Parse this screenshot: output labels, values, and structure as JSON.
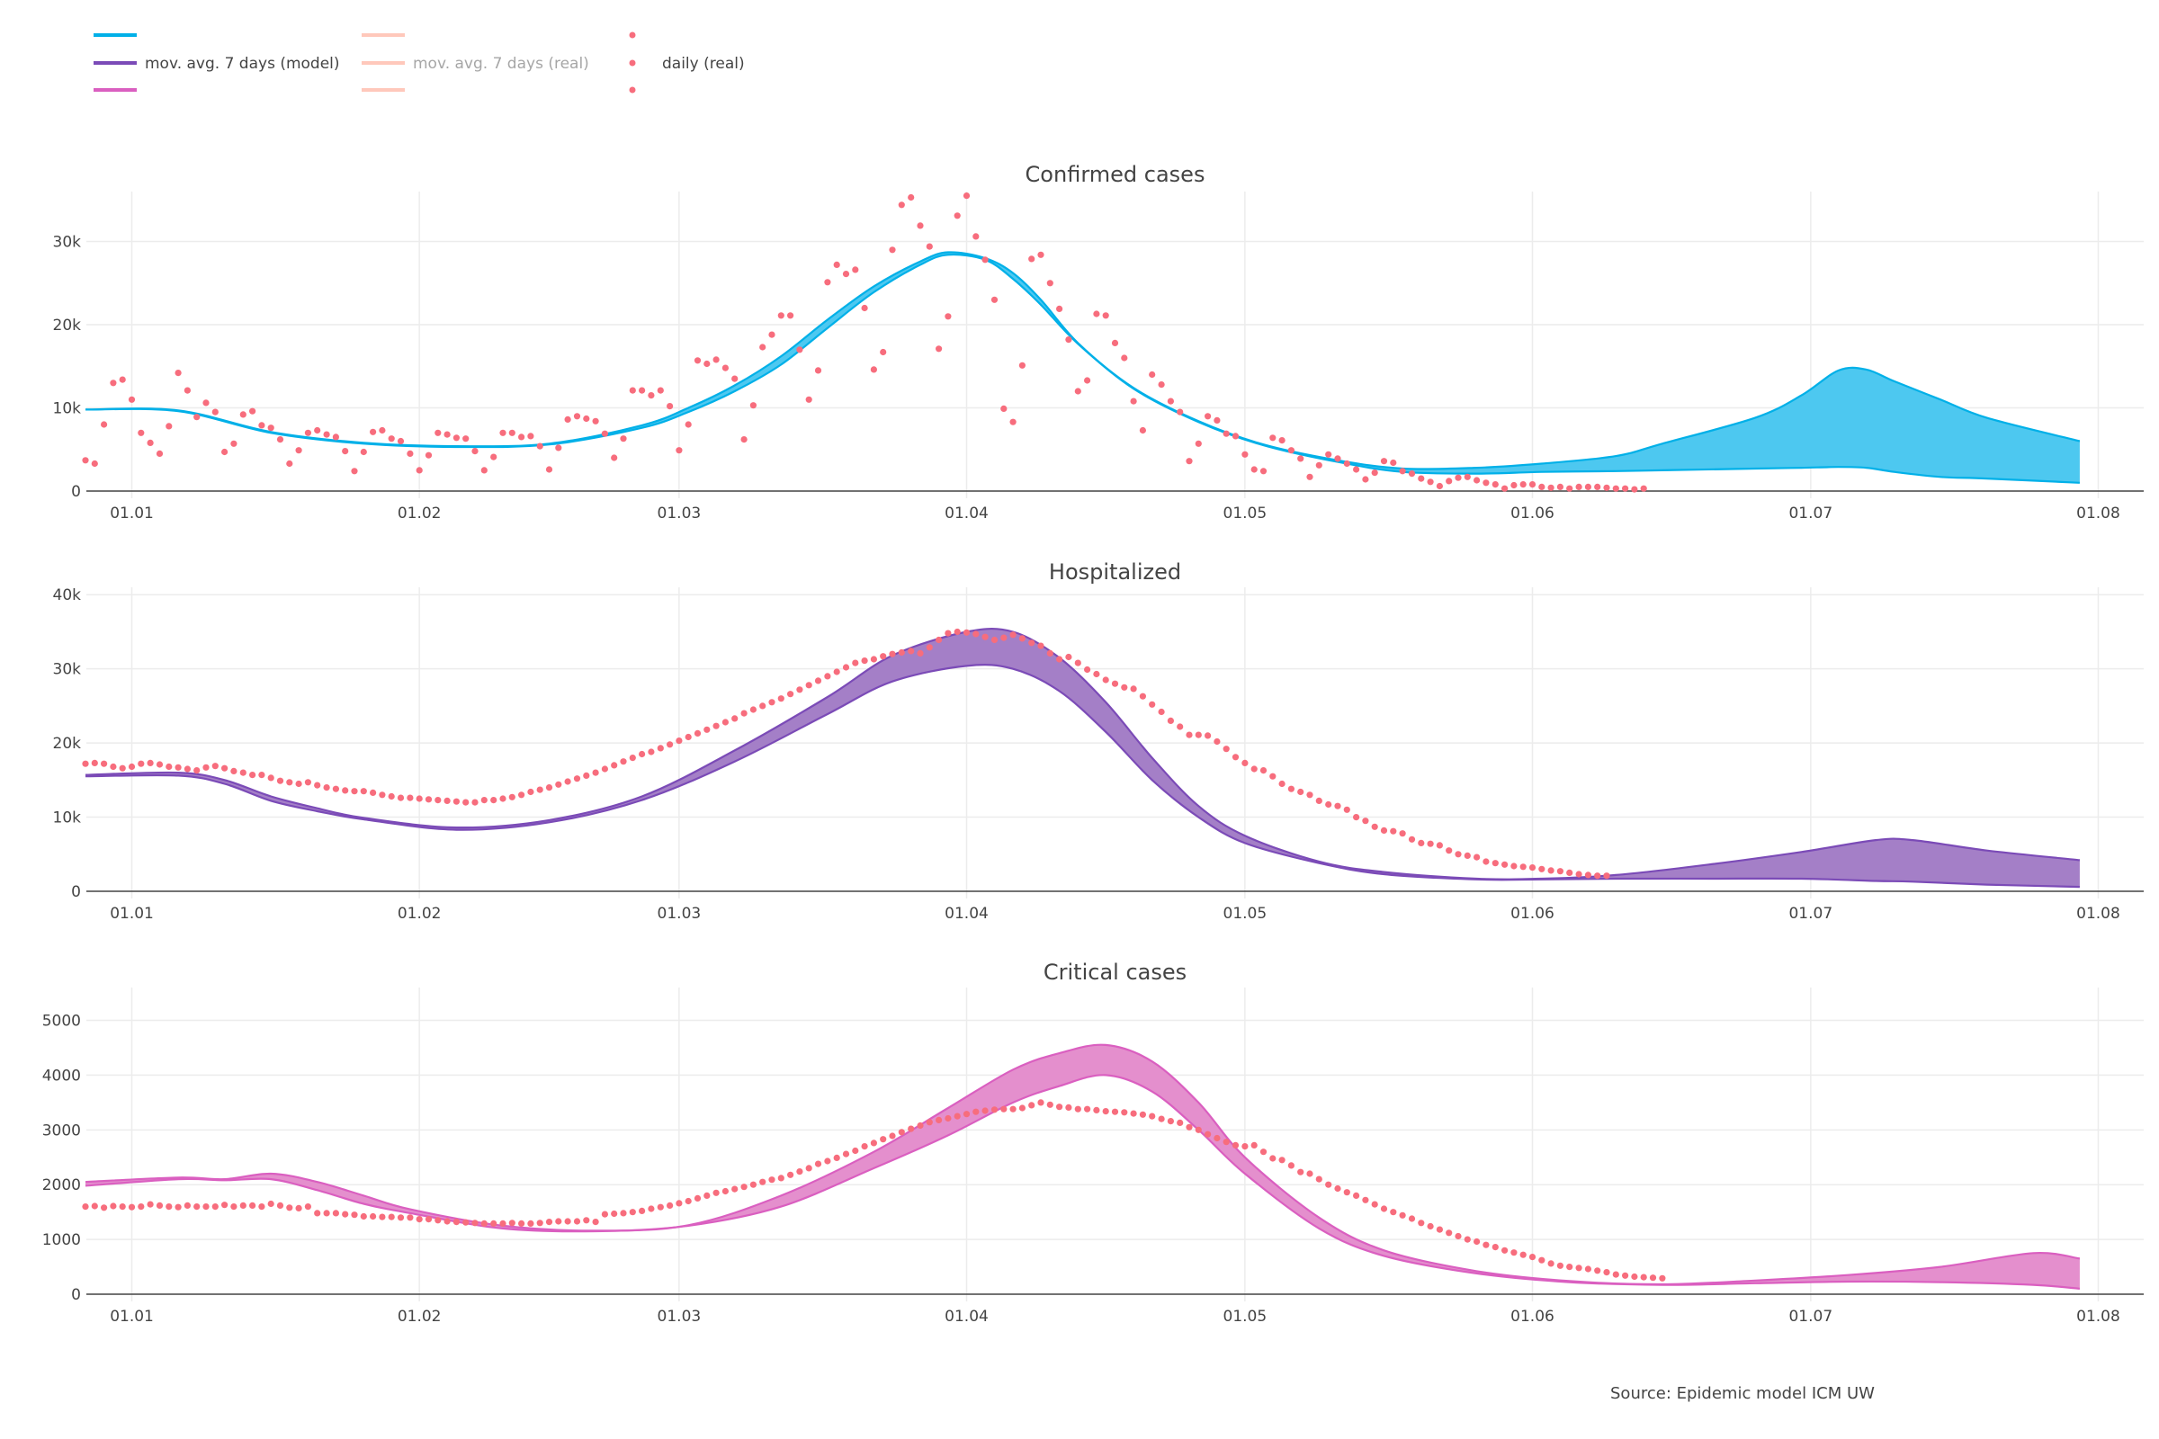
{
  "legend": {
    "items": [
      {
        "label": "mov. avg. 7 days (model)",
        "colors": [
          "#00b0e8",
          "#7b4bb7",
          "#da5fc0"
        ],
        "kind": "line",
        "muted": false
      },
      {
        "label": "mov. avg. 7 days (real)",
        "colors": [
          "#ffc8bb",
          "#ffc8bb",
          "#ffc8bb"
        ],
        "kind": "line",
        "muted": true
      },
      {
        "label": "daily (real)",
        "colors": [
          "#f76d7d",
          "#f76d7d",
          "#f76d7d"
        ],
        "kind": "dot",
        "muted": false
      }
    ]
  },
  "source": "Source: Epidemic model ICM UW",
  "chart_data": [
    {
      "type": "area",
      "title": "Confirmed cases",
      "color": "#00b0e8",
      "fill": "#4dc8f0",
      "x_start_date": "01.01",
      "x_unit": "days since 01.01",
      "xlim": [
        -4.9,
        216.9
      ],
      "xticks": [
        {
          "day": 0,
          "label": "01.01"
        },
        {
          "day": 31,
          "label": "01.02"
        },
        {
          "day": 59,
          "label": "01.03"
        },
        {
          "day": 90,
          "label": "01.04"
        },
        {
          "day": 120,
          "label": "01.05"
        },
        {
          "day": 151,
          "label": "01.06"
        },
        {
          "day": 181,
          "label": "01.07"
        },
        {
          "day": 212,
          "label": "01.08"
        }
      ],
      "ylim": [
        0,
        36000
      ],
      "yticks": [
        {
          "value": 0,
          "label": "0"
        },
        {
          "value": 10000,
          "label": "10k"
        },
        {
          "value": 20000,
          "label": "20k"
        },
        {
          "value": 30000,
          "label": "30k"
        }
      ],
      "model_band": {
        "name": "mov. avg. 7 days (model)",
        "day": [
          -5,
          5,
          15,
          25,
          35,
          45,
          55,
          60,
          65,
          70,
          75,
          80,
          85,
          88,
          92,
          95,
          98,
          102,
          108,
          115,
          122,
          130,
          137,
          145,
          152,
          160,
          165,
          175,
          180,
          184,
          187,
          190,
          195,
          200,
          210
        ],
        "lower": [
          9800,
          9600,
          7000,
          5700,
          5300,
          5600,
          7600,
          9500,
          12000,
          15200,
          19600,
          23900,
          27200,
          28400,
          27800,
          25500,
          22400,
          17700,
          12300,
          8300,
          5500,
          3500,
          2300,
          2100,
          2300,
          2400,
          2500,
          2700,
          2800,
          2900,
          2800,
          2300,
          1700,
          1500,
          1000
        ],
        "upper": [
          9800,
          9700,
          7100,
          5800,
          5400,
          5700,
          7900,
          10000,
          12700,
          16200,
          20600,
          24600,
          27600,
          28700,
          28000,
          26200,
          23000,
          17800,
          12400,
          8400,
          5600,
          3700,
          2700,
          2800,
          3300,
          4200,
          5700,
          8800,
          11500,
          14500,
          14600,
          13200,
          11000,
          8800,
          6000
        ]
      },
      "daily_real": {
        "name": "daily (real)",
        "start_day": -5,
        "values": [
          3700,
          3300,
          8000,
          13000,
          13400,
          11000,
          7000,
          5800,
          4500,
          7800,
          14200,
          12100,
          8900,
          10600,
          9500,
          4700,
          5700,
          9200,
          9600,
          7900,
          7600,
          6200,
          3300,
          4900,
          7000,
          7300,
          6800,
          6500,
          4800,
          2400,
          4700,
          7100,
          7300,
          6300,
          6000,
          4500,
          2500,
          4300,
          7000,
          6800,
          6400,
          6300,
          4800,
          2500,
          4100,
          7000,
          7000,
          6500,
          6600,
          5400,
          2600,
          5200,
          8600,
          9000,
          8700,
          8400,
          6900,
          4000,
          6300,
          12100,
          12100,
          11500,
          12100,
          10200,
          4900,
          8000,
          15700,
          15300,
          15800,
          14800,
          13500,
          6200,
          10300,
          17300,
          18800,
          21100,
          21100,
          17000,
          11000,
          14500,
          25100,
          27200,
          26100,
          26600,
          22000,
          14600,
          16700,
          29000,
          34400,
          35300,
          31900,
          29400,
          17100,
          21000,
          33100,
          35500,
          30600,
          27800,
          23000,
          9900,
          8300,
          15100,
          27900,
          28400,
          25000,
          21900,
          18200,
          12000,
          13300,
          21300,
          21100,
          17800,
          16000,
          10800,
          7300,
          14000,
          12800,
          10800,
          9500,
          3600,
          5700,
          9000,
          8500,
          6900,
          6600,
          4400,
          2600,
          2400,
          6400,
          6100,
          4900,
          3900,
          1700,
          3100,
          4400,
          3900,
          3300,
          2600,
          1400,
          2200,
          3600,
          3400,
          2400,
          2100,
          1500,
          1100,
          600,
          1200,
          1600,
          1700,
          1300,
          1000,
          800,
          300,
          700,
          800,
          800,
          500,
          400,
          500,
          300,
          500,
          500,
          500,
          400,
          300,
          300,
          200,
          300
        ]
      }
    },
    {
      "type": "area",
      "title": "Hospitalized",
      "color": "#7b4bb7",
      "fill": "#a47fc7",
      "x_start_date": "01.01",
      "x_unit": "days since 01.01",
      "xlim": [
        -4.9,
        216.9
      ],
      "xticks": [
        {
          "day": 0,
          "label": "01.01"
        },
        {
          "day": 31,
          "label": "01.02"
        },
        {
          "day": 59,
          "label": "01.03"
        },
        {
          "day": 90,
          "label": "01.04"
        },
        {
          "day": 120,
          "label": "01.05"
        },
        {
          "day": 151,
          "label": "01.06"
        },
        {
          "day": 181,
          "label": "01.07"
        },
        {
          "day": 212,
          "label": "01.08"
        }
      ],
      "ylim": [
        0,
        41000
      ],
      "yticks": [
        {
          "value": 0,
          "label": "0"
        },
        {
          "value": 10000,
          "label": "10k"
        },
        {
          "value": 20000,
          "label": "20k"
        },
        {
          "value": 30000,
          "label": "30k"
        },
        {
          "value": 40000,
          "label": "40k"
        }
      ],
      "model_band": {
        "name": "mov. avg. 7 days (model)",
        "day": [
          -5,
          5,
          10,
          15,
          20,
          25,
          35,
          45,
          55,
          65,
          75,
          82,
          90,
          95,
          100,
          105,
          110,
          115,
          120,
          128,
          135,
          145,
          152,
          160,
          170,
          180,
          188,
          192,
          200,
          210
        ],
        "lower": [
          15500,
          15600,
          14500,
          12200,
          10800,
          9700,
          8300,
          9300,
          12300,
          17500,
          23900,
          28300,
          30400,
          30000,
          27000,
          21500,
          15000,
          10000,
          6500,
          3800,
          2300,
          1600,
          1600,
          1700,
          1700,
          1700,
          1400,
          1300,
          900,
          600
        ],
        "upper": [
          15700,
          16000,
          15000,
          12800,
          11200,
          9900,
          8600,
          9600,
          12800,
          19000,
          26200,
          31800,
          35000,
          35000,
          31500,
          25500,
          18000,
          11500,
          7500,
          4000,
          2600,
          1700,
          1700,
          2200,
          3600,
          5300,
          6900,
          6900,
          5500,
          4200
        ]
      },
      "daily_real": {
        "name": "daily (real)",
        "start_day": -5,
        "values": [
          17200,
          17300,
          17200,
          16800,
          16600,
          16800,
          17200,
          17300,
          17100,
          16800,
          16700,
          16500,
          16300,
          16700,
          16900,
          16600,
          16200,
          16000,
          15700,
          15700,
          15300,
          14900,
          14700,
          14500,
          14700,
          14300,
          14000,
          13800,
          13600,
          13500,
          13500,
          13300,
          13000,
          12800,
          12600,
          12600,
          12500,
          12400,
          12300,
          12200,
          12100,
          12000,
          12000,
          12300,
          12300,
          12500,
          12700,
          13000,
          13400,
          13700,
          14000,
          14400,
          14800,
          15200,
          15600,
          16000,
          16500,
          17000,
          17500,
          18000,
          18500,
          18800,
          19300,
          19800,
          20300,
          20800,
          21300,
          21800,
          22300,
          22800,
          23300,
          24000,
          24500,
          25000,
          25500,
          26000,
          26600,
          27200,
          27800,
          28400,
          29000,
          29600,
          30200,
          30800,
          31100,
          31300,
          31700,
          32000,
          32200,
          32400,
          32100,
          32900,
          33900,
          34800,
          35000,
          34900,
          34700,
          34300,
          33900,
          34200,
          34600,
          34100,
          33500,
          33100,
          32100,
          31300,
          31600,
          30800,
          29900,
          29300,
          28500,
          28000,
          27500,
          27300,
          26300,
          25200,
          24200,
          23000,
          22200,
          21100,
          21100,
          21000,
          20200,
          19200,
          18100,
          17300,
          16500,
          16300,
          15500,
          14500,
          13800,
          13400,
          13000,
          12200,
          11700,
          11500,
          11000,
          10000,
          9500,
          8700,
          8200,
          8100,
          7800,
          7000,
          6500,
          6400,
          6200,
          5500,
          5000,
          4800,
          4600,
          4000,
          3800,
          3600,
          3400,
          3300,
          3200,
          3000,
          2800,
          2700,
          2500,
          2300,
          2200,
          2100,
          2100
        ]
      }
    },
    {
      "type": "area",
      "title": "Critical cases",
      "color": "#da5fc0",
      "fill": "#e48fcd",
      "x_start_date": "01.01",
      "x_unit": "days since 01.01",
      "xlim": [
        -4.9,
        216.9
      ],
      "xticks": [
        {
          "day": 0,
          "label": "01.01"
        },
        {
          "day": 31,
          "label": "01.02"
        },
        {
          "day": 59,
          "label": "01.03"
        },
        {
          "day": 90,
          "label": "01.04"
        },
        {
          "day": 120,
          "label": "01.05"
        },
        {
          "day": 151,
          "label": "01.06"
        },
        {
          "day": 181,
          "label": "01.07"
        },
        {
          "day": 212,
          "label": "01.08"
        }
      ],
      "ylim": [
        0,
        5600
      ],
      "yticks": [
        {
          "value": 0,
          "label": "0"
        },
        {
          "value": 1000,
          "label": "1000"
        },
        {
          "value": 2000,
          "label": "2000"
        },
        {
          "value": 3000,
          "label": "3000"
        },
        {
          "value": 4000,
          "label": "4000"
        },
        {
          "value": 5000,
          "label": "5000"
        }
      ],
      "model_band": {
        "name": "mov. avg. 7 days (model)",
        "day": [
          -5,
          5,
          10,
          15,
          20,
          25,
          30,
          40,
          50,
          60,
          70,
          80,
          88,
          95,
          100,
          105,
          110,
          115,
          120,
          128,
          135,
          145,
          155,
          165,
          175,
          185,
          195,
          205,
          210
        ],
        "lower": [
          1980,
          2100,
          2080,
          2100,
          1900,
          1650,
          1480,
          1200,
          1150,
          1250,
          1600,
          2300,
          2900,
          3500,
          3800,
          4000,
          3700,
          3000,
          2200,
          1200,
          700,
          380,
          220,
          170,
          200,
          230,
          220,
          170,
          100
        ],
        "upper": [
          2050,
          2130,
          2100,
          2200,
          2050,
          1800,
          1550,
          1250,
          1160,
          1260,
          1800,
          2600,
          3400,
          4100,
          4400,
          4550,
          4250,
          3500,
          2500,
          1400,
          800,
          420,
          240,
          180,
          250,
          350,
          500,
          750,
          650
        ]
      },
      "daily_real": {
        "name": "daily (real)",
        "start_day": -5,
        "values": [
          1600,
          1610,
          1580,
          1610,
          1600,
          1590,
          1600,
          1640,
          1620,
          1600,
          1590,
          1620,
          1600,
          1600,
          1600,
          1630,
          1600,
          1620,
          1620,
          1600,
          1650,
          1620,
          1580,
          1570,
          1600,
          1480,
          1480,
          1480,
          1460,
          1450,
          1420,
          1420,
          1410,
          1410,
          1400,
          1400,
          1370,
          1370,
          1350,
          1330,
          1320,
          1310,
          1300,
          1290,
          1290,
          1290,
          1300,
          1290,
          1290,
          1300,
          1320,
          1330,
          1330,
          1330,
          1350,
          1320,
          1460,
          1470,
          1480,
          1500,
          1520,
          1560,
          1590,
          1620,
          1660,
          1700,
          1750,
          1800,
          1850,
          1880,
          1920,
          1960,
          2000,
          2050,
          2090,
          2120,
          2180,
          2240,
          2300,
          2380,
          2430,
          2490,
          2560,
          2620,
          2700,
          2760,
          2830,
          2890,
          2960,
          3020,
          3080,
          3140,
          3180,
          3210,
          3250,
          3290,
          3330,
          3350,
          3370,
          3380,
          3380,
          3400,
          3450,
          3500,
          3460,
          3420,
          3410,
          3380,
          3380,
          3360,
          3340,
          3330,
          3320,
          3300,
          3280,
          3250,
          3200,
          3160,
          3130,
          3050,
          3000,
          2920,
          2850,
          2780,
          2720,
          2700,
          2720,
          2600,
          2480,
          2450,
          2350,
          2230,
          2200,
          2100,
          2000,
          1930,
          1860,
          1800,
          1720,
          1640,
          1560,
          1500,
          1440,
          1380,
          1300,
          1240,
          1180,
          1120,
          1060,
          1000,
          960,
          900,
          860,
          800,
          760,
          720,
          680,
          620,
          560,
          520,
          500,
          480,
          460,
          430,
          400,
          360,
          340,
          320,
          310,
          300,
          290
        ]
      }
    }
  ]
}
